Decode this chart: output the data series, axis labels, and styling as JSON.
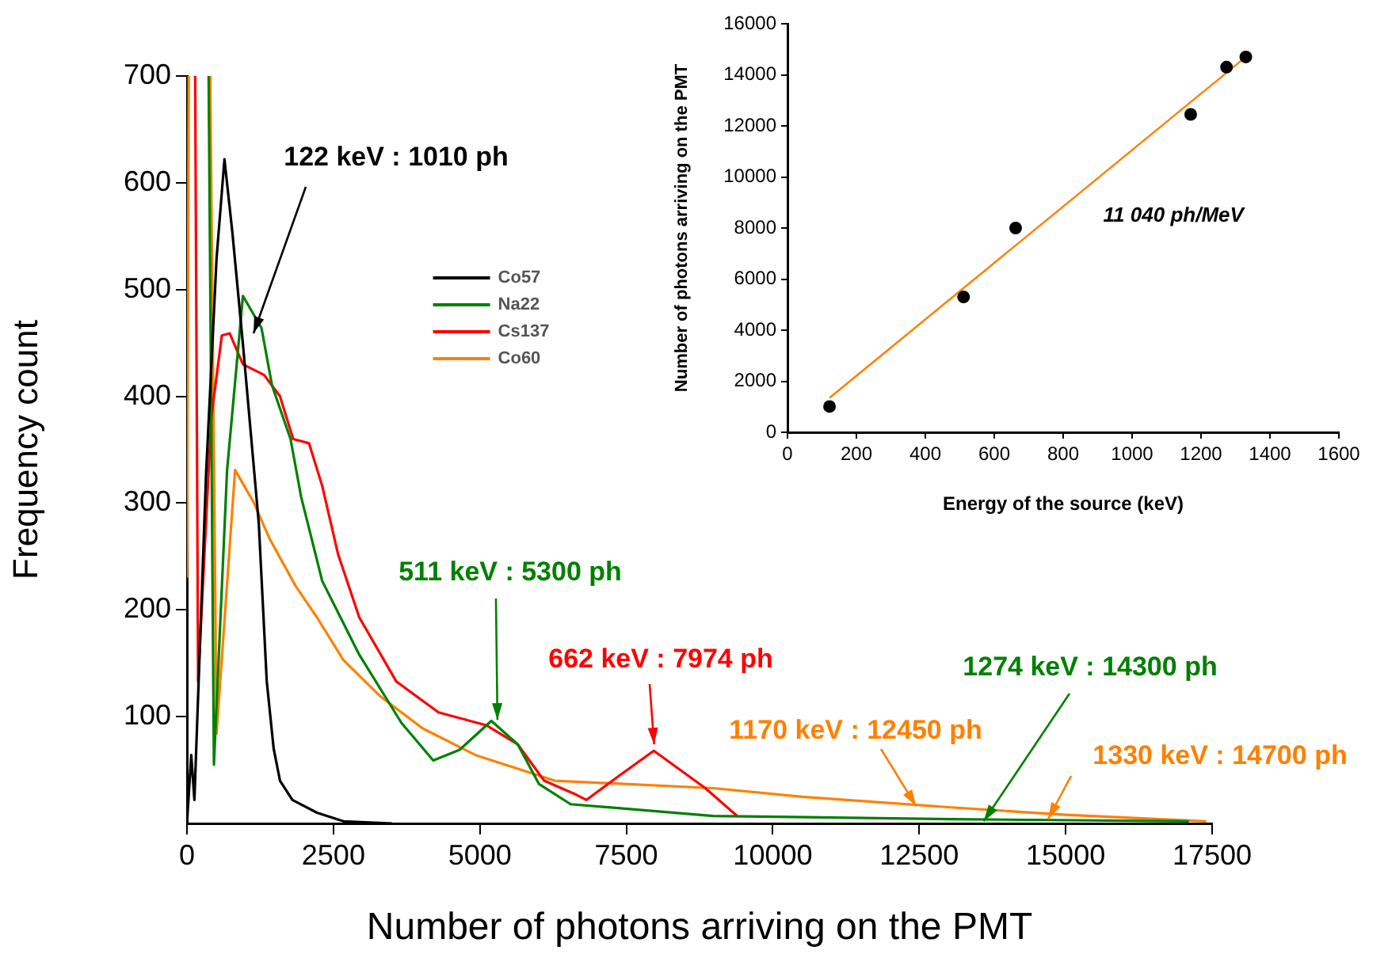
{
  "chart_data": [
    {
      "type": "line",
      "xlabel": "Number of photons arriving on the PMT",
      "ylabel": "Frequency count",
      "xlim": [
        0,
        17500
      ],
      "xticks": [
        0,
        2500,
        5000,
        7500,
        10000,
        12500,
        15000,
        17500
      ],
      "ylim": [
        0,
        700
      ],
      "yticks": [
        100,
        200,
        300,
        400,
        500,
        600,
        700
      ],
      "grid": false,
      "legend": "top",
      "marker": "none",
      "line_style": "solid",
      "series": [
        {
          "name": "Co57",
          "color": "#000000",
          "x": [
            0,
            73,
            127,
            325,
            505,
            640,
            776,
            955,
            1226,
            1362,
            1480,
            1588,
            1800,
            2219,
            2670,
            3500
          ],
          "values": [
            0,
            64,
            22,
            326,
            529,
            622,
            553,
            449,
            281,
            133,
            70,
            40,
            22,
            10,
            2,
            0
          ]
        },
        {
          "name": "Na22",
          "color": "#008000",
          "x": [
            370,
            460,
            685,
            955,
            1272,
            1453,
            1768,
            1948,
            2309,
            2941,
            3663,
            4204,
            4655,
            5196,
            5647,
            6007,
            6549,
            8984,
            13043,
            17102
          ],
          "values": [
            700,
            55,
            331,
            494,
            464,
            410,
            360,
            306,
            227,
            158,
            94,
            59,
            69,
            96,
            74,
            37,
            18,
            7,
            4,
            2
          ]
        },
        {
          "name": "Cs137",
          "color": "#ff0000",
          "x": [
            140,
            190,
            415,
            595,
            730,
            955,
            1317,
            1588,
            1813,
            2084,
            2309,
            2580,
            2941,
            3572,
            4294,
            5106,
            5647,
            6097,
            6639,
            6820,
            7360,
            7969,
            8849,
            9390
          ],
          "values": [
            700,
            133,
            380,
            457,
            459,
            430,
            420,
            400,
            360,
            356,
            316,
            252,
            193,
            133,
            104,
            92,
            74,
            40,
            27,
            22,
            44,
            68,
            33,
            7
          ]
        },
        {
          "name": "Co60",
          "color": "#ff8000",
          "x": [
            0,
            30,
            215,
            397,
            505,
            821,
            1136,
            1407,
            1858,
            2219,
            2670,
            3301,
            4023,
            4925,
            6278,
            8984,
            10500,
            13043,
            15000,
            17400
          ],
          "values": [
            230,
            700,
            null,
            700,
            84,
            331,
            301,
            267,
            222,
            193,
            153,
            119,
            89,
            64,
            40,
            33,
            25,
            15,
            8,
            2
          ]
        }
      ],
      "annotations": [
        {
          "text": "122 keV : 1010 ph",
          "x": 1136,
          "y": 459
        },
        {
          "text": "511 keV : 5300 ph",
          "x": 5300,
          "y": 97
        },
        {
          "text": "662 keV : 7974 ph",
          "x": 7974,
          "y": 74
        },
        {
          "text": "1170 keV : 12450 ph",
          "x": 12450,
          "y": 16
        },
        {
          "text": "1274 keV : 14300 ph",
          "x": 13600,
          "y": 2
        },
        {
          "text": "1330 keV : 14700 ph",
          "x": 14700,
          "y": 4
        }
      ]
    },
    {
      "type": "scatter",
      "xlabel": "Energy of the source (keV)",
      "ylabel": "Number of photons arriving on the PMT",
      "xlim": [
        0,
        1600
      ],
      "xticks": [
        0,
        200,
        400,
        600,
        800,
        1000,
        1200,
        1400,
        1600
      ],
      "ylim": [
        0,
        16000
      ],
      "yticks": [
        0,
        2000,
        4000,
        6000,
        8000,
        10000,
        12000,
        14000,
        16000
      ],
      "grid": false,
      "legend": false,
      "series": [
        {
          "color": "#000000",
          "marker": "circle",
          "x": [
            122,
            511,
            662,
            1170,
            1274,
            1330
          ],
          "values": [
            1010,
            5300,
            8000,
            12450,
            14300,
            14700
          ]
        },
        {
          "type": "line",
          "marker": "none",
          "color": "#ff8000",
          "x": [
            122,
            1330
          ],
          "values": [
            1350,
            14700
          ]
        }
      ],
      "annotations": [
        "11 040 ph/MeV"
      ]
    }
  ]
}
